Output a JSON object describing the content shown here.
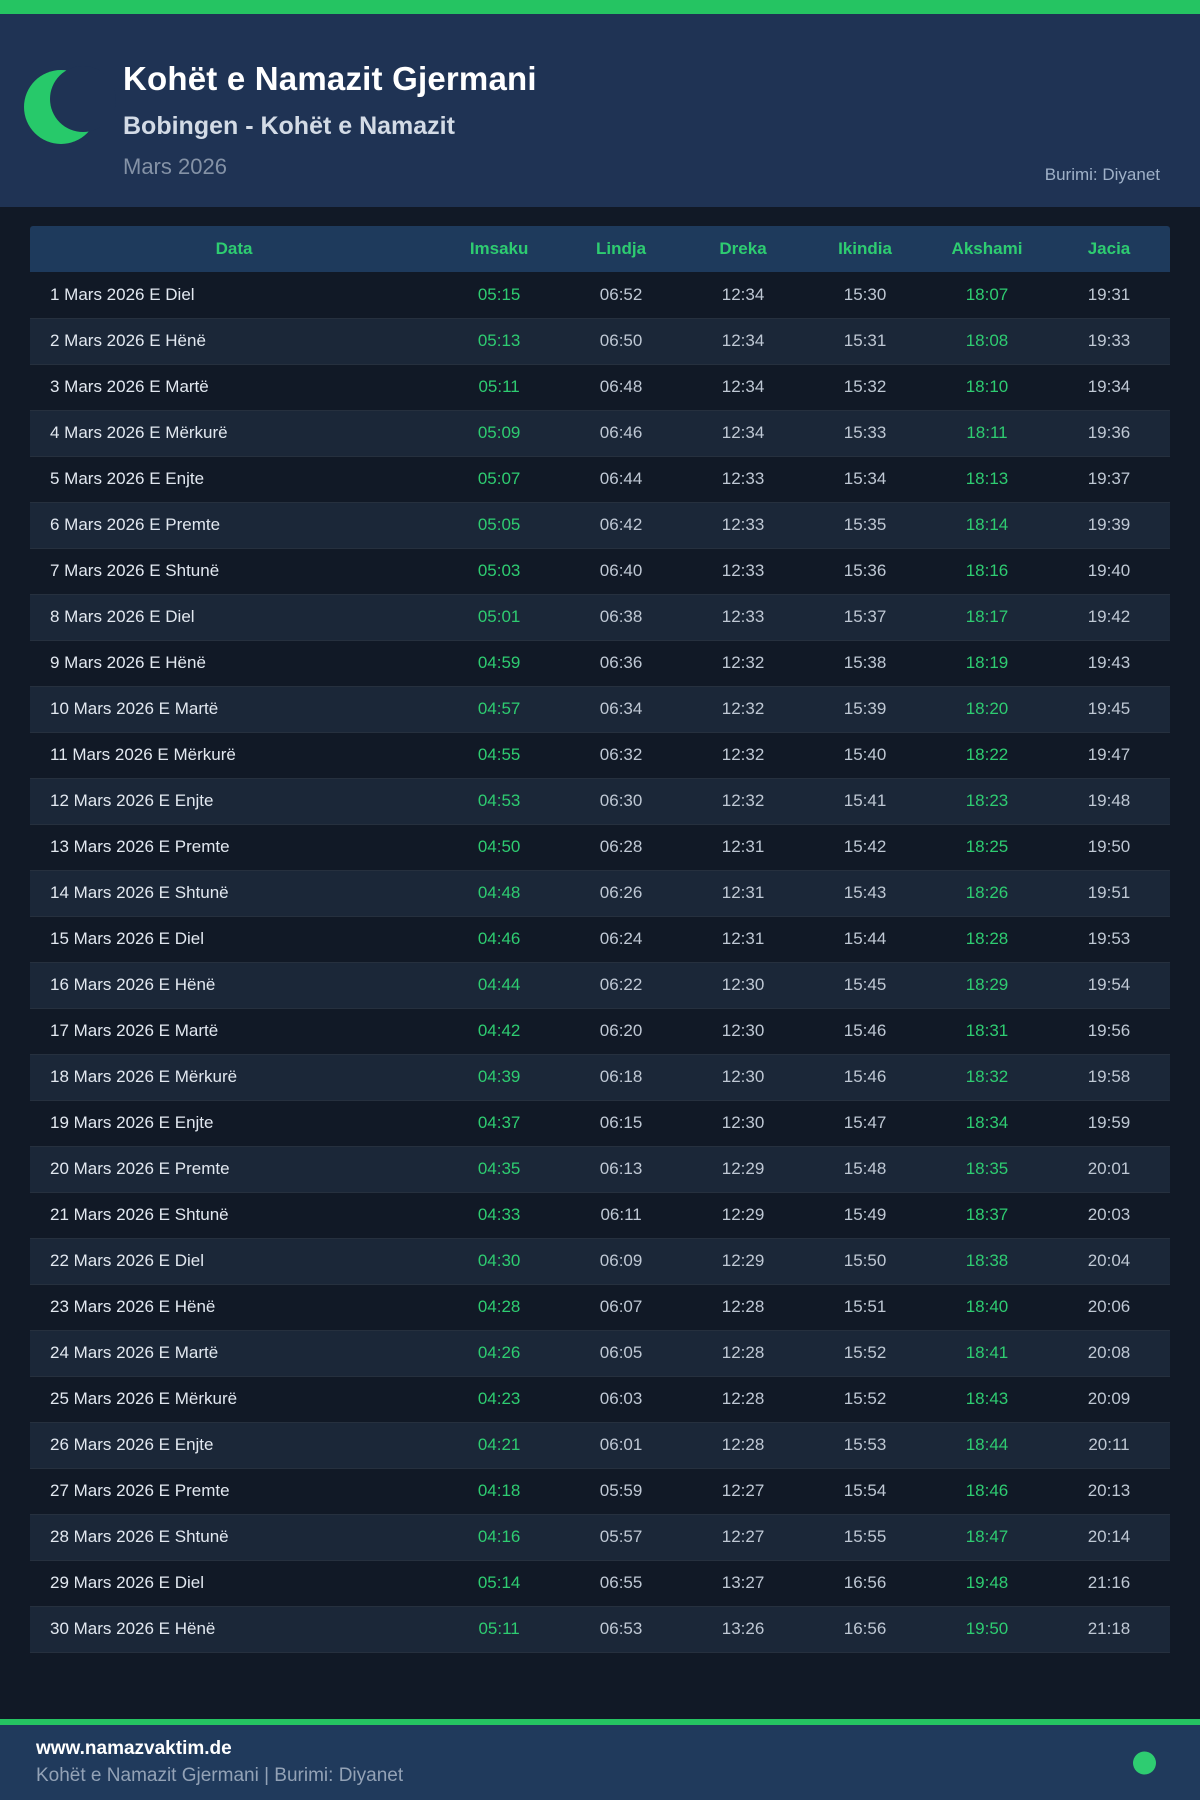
{
  "header": {
    "title": "Kohët e Namazit Gjermani",
    "subtitle": "Bobingen - Kohët e Namazit",
    "period": "Mars 2026",
    "source": "Burimi: Diyanet",
    "icon": "crescent-moon-icon"
  },
  "table": {
    "columns": [
      "Data",
      "Imsaku",
      "Lindja",
      "Dreka",
      "Ikindia",
      "Akshami",
      "Jacia"
    ],
    "column_keys": [
      "data",
      "imsaku",
      "lindja",
      "dreka",
      "ikindia",
      "akshami",
      "jacia"
    ],
    "highlight_columns": [
      1,
      5
    ],
    "rows": [
      [
        "1 Mars 2026 E Diel",
        "05:15",
        "06:52",
        "12:34",
        "15:30",
        "18:07",
        "19:31"
      ],
      [
        "2 Mars 2026 E Hënë",
        "05:13",
        "06:50",
        "12:34",
        "15:31",
        "18:08",
        "19:33"
      ],
      [
        "3 Mars 2026 E Martë",
        "05:11",
        "06:48",
        "12:34",
        "15:32",
        "18:10",
        "19:34"
      ],
      [
        "4 Mars 2026 E Mërkurë",
        "05:09",
        "06:46",
        "12:34",
        "15:33",
        "18:11",
        "19:36"
      ],
      [
        "5 Mars 2026 E Enjte",
        "05:07",
        "06:44",
        "12:33",
        "15:34",
        "18:13",
        "19:37"
      ],
      [
        "6 Mars 2026 E Premte",
        "05:05",
        "06:42",
        "12:33",
        "15:35",
        "18:14",
        "19:39"
      ],
      [
        "7 Mars 2026 E Shtunë",
        "05:03",
        "06:40",
        "12:33",
        "15:36",
        "18:16",
        "19:40"
      ],
      [
        "8 Mars 2026 E Diel",
        "05:01",
        "06:38",
        "12:33",
        "15:37",
        "18:17",
        "19:42"
      ],
      [
        "9 Mars 2026 E Hënë",
        "04:59",
        "06:36",
        "12:32",
        "15:38",
        "18:19",
        "19:43"
      ],
      [
        "10 Mars 2026 E Martë",
        "04:57",
        "06:34",
        "12:32",
        "15:39",
        "18:20",
        "19:45"
      ],
      [
        "11 Mars 2026 E Mërkurë",
        "04:55",
        "06:32",
        "12:32",
        "15:40",
        "18:22",
        "19:47"
      ],
      [
        "12 Mars 2026 E Enjte",
        "04:53",
        "06:30",
        "12:32",
        "15:41",
        "18:23",
        "19:48"
      ],
      [
        "13 Mars 2026 E Premte",
        "04:50",
        "06:28",
        "12:31",
        "15:42",
        "18:25",
        "19:50"
      ],
      [
        "14 Mars 2026 E Shtunë",
        "04:48",
        "06:26",
        "12:31",
        "15:43",
        "18:26",
        "19:51"
      ],
      [
        "15 Mars 2026 E Diel",
        "04:46",
        "06:24",
        "12:31",
        "15:44",
        "18:28",
        "19:53"
      ],
      [
        "16 Mars 2026 E Hënë",
        "04:44",
        "06:22",
        "12:30",
        "15:45",
        "18:29",
        "19:54"
      ],
      [
        "17 Mars 2026 E Martë",
        "04:42",
        "06:20",
        "12:30",
        "15:46",
        "18:31",
        "19:56"
      ],
      [
        "18 Mars 2026 E Mërkurë",
        "04:39",
        "06:18",
        "12:30",
        "15:46",
        "18:32",
        "19:58"
      ],
      [
        "19 Mars 2026 E Enjte",
        "04:37",
        "06:15",
        "12:30",
        "15:47",
        "18:34",
        "19:59"
      ],
      [
        "20 Mars 2026 E Premte",
        "04:35",
        "06:13",
        "12:29",
        "15:48",
        "18:35",
        "20:01"
      ],
      [
        "21 Mars 2026 E Shtunë",
        "04:33",
        "06:11",
        "12:29",
        "15:49",
        "18:37",
        "20:03"
      ],
      [
        "22 Mars 2026 E Diel",
        "04:30",
        "06:09",
        "12:29",
        "15:50",
        "18:38",
        "20:04"
      ],
      [
        "23 Mars 2026 E Hënë",
        "04:28",
        "06:07",
        "12:28",
        "15:51",
        "18:40",
        "20:06"
      ],
      [
        "24 Mars 2026 E Martë",
        "04:26",
        "06:05",
        "12:28",
        "15:52",
        "18:41",
        "20:08"
      ],
      [
        "25 Mars 2026 E Mërkurë",
        "04:23",
        "06:03",
        "12:28",
        "15:52",
        "18:43",
        "20:09"
      ],
      [
        "26 Mars 2026 E Enjte",
        "04:21",
        "06:01",
        "12:28",
        "15:53",
        "18:44",
        "20:11"
      ],
      [
        "27 Mars 2026 E Premte",
        "04:18",
        "05:59",
        "12:27",
        "15:54",
        "18:46",
        "20:13"
      ],
      [
        "28 Mars 2026 E Shtunë",
        "04:16",
        "05:57",
        "12:27",
        "15:55",
        "18:47",
        "20:14"
      ],
      [
        "29 Mars 2026 E Diel",
        "05:14",
        "06:55",
        "13:27",
        "16:56",
        "19:48",
        "21:16"
      ],
      [
        "30 Mars 2026 E Hënë",
        "05:11",
        "06:53",
        "13:26",
        "16:56",
        "19:50",
        "21:18"
      ]
    ]
  },
  "footer": {
    "website": "www.namazvaktim.de",
    "tagline": "Kohët e Namazit Gjermani | Burimi: Diyanet"
  },
  "colors": {
    "accent_green": "#2ecc71",
    "bar_green": "#25c462",
    "header_navy": "#1f3354",
    "footer_navy": "#203a5c",
    "table_header_blue": "#1e3a5c",
    "page_dark": "#111926",
    "row_even": "#1b2738"
  }
}
